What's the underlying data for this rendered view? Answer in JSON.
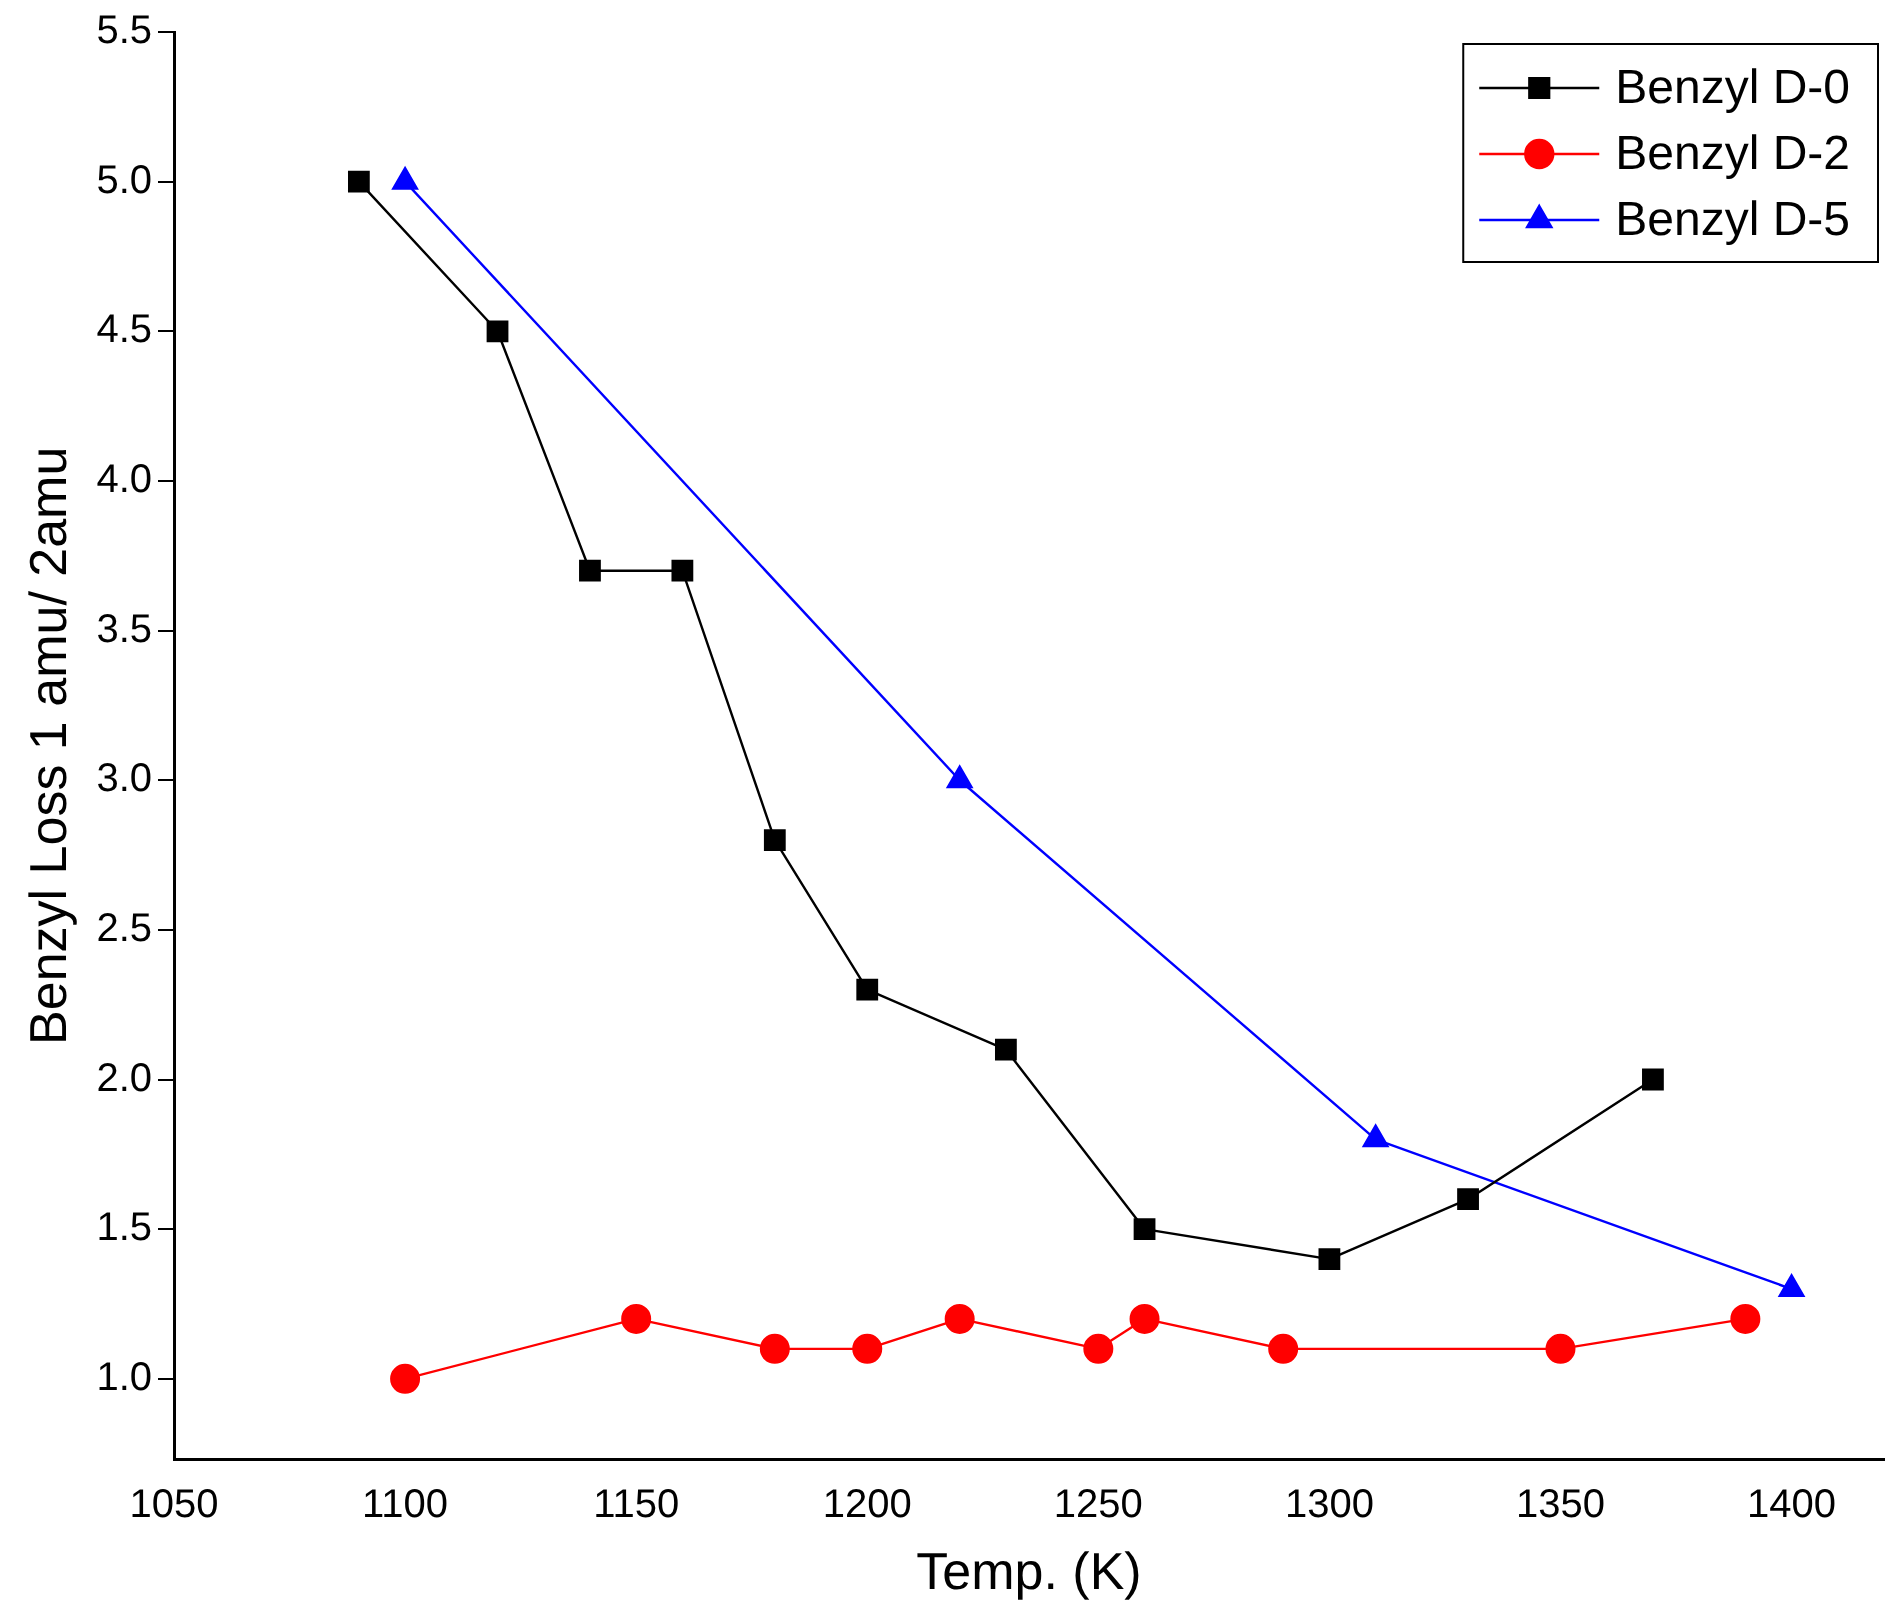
{
  "chart_data": {
    "type": "line",
    "xlabel": "Temp. (K)",
    "ylabel": "Benzyl Loss 1 amu/ 2amu",
    "xlim": [
      1050,
      1420
    ],
    "xticks": [
      1050,
      1100,
      1150,
      1200,
      1250,
      1300,
      1350,
      1400
    ],
    "ylim": [
      0.73,
      5.5
    ],
    "yticks": [
      {
        "value": 1.0,
        "label": "1.0"
      },
      {
        "value": 1.5,
        "label": "1.5"
      },
      {
        "value": 2.0,
        "label": "2.0"
      },
      {
        "value": 2.5,
        "label": "2.5"
      },
      {
        "value": 3.0,
        "label": "3.0"
      },
      {
        "value": 3.5,
        "label": "3.5"
      },
      {
        "value": 4.0,
        "label": "4.0"
      },
      {
        "value": 4.5,
        "label": "4.5"
      },
      {
        "value": 5.0,
        "label": "5.0"
      },
      {
        "value": 5.5,
        "label": "5.5"
      }
    ],
    "grid": false,
    "legend": "top right",
    "line_style": "solid",
    "series": [
      {
        "name": "Benzyl D-0",
        "color": "#000000",
        "marker": "square",
        "x": [
          1090,
          1120,
          1140,
          1160,
          1180,
          1200,
          1230,
          1260,
          1300,
          1330,
          1370
        ],
        "values": [
          5.0,
          4.5,
          3.7,
          3.7,
          2.8,
          2.3,
          2.1,
          1.5,
          1.4,
          1.6,
          2.0
        ]
      },
      {
        "name": "Benzyl D-2",
        "color": "#ff0000",
        "marker": "circle",
        "x": [
          1100,
          1150,
          1180,
          1200,
          1220,
          1250,
          1260,
          1290,
          1350,
          1390
        ],
        "values": [
          1.0,
          1.2,
          1.1,
          1.1,
          1.2,
          1.1,
          1.2,
          1.1,
          1.1,
          1.2
        ]
      },
      {
        "name": "Benzyl D-5",
        "color": "#0000ff",
        "marker": "triangle",
        "x": [
          1100,
          1220,
          1310,
          1400
        ],
        "values": [
          5.0,
          3.0,
          1.8,
          1.3
        ]
      }
    ]
  }
}
